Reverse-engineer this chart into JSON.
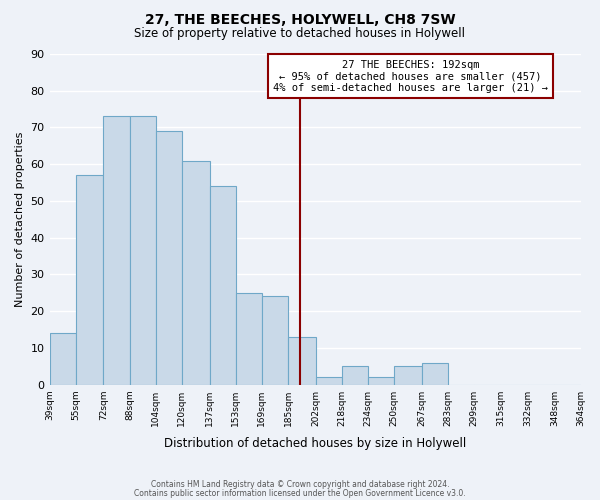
{
  "title": "27, THE BEECHES, HOLYWELL, CH8 7SW",
  "subtitle": "Size of property relative to detached houses in Holywell",
  "xlabel": "Distribution of detached houses by size in Holywell",
  "ylabel": "Number of detached properties",
  "bar_color": "#c9d9e8",
  "bar_edge_color": "#6fa8c8",
  "background_color": "#eef2f8",
  "grid_color": "#ffffff",
  "bin_edges": [
    39,
    55,
    72,
    88,
    104,
    120,
    137,
    153,
    169,
    185,
    202,
    218,
    234,
    250,
    267,
    283,
    299,
    315,
    332,
    348,
    364
  ],
  "bin_labels": [
    "39sqm",
    "55sqm",
    "72sqm",
    "88sqm",
    "104sqm",
    "120sqm",
    "137sqm",
    "153sqm",
    "169sqm",
    "185sqm",
    "202sqm",
    "218sqm",
    "234sqm",
    "250sqm",
    "267sqm",
    "283sqm",
    "299sqm",
    "315sqm",
    "332sqm",
    "348sqm",
    "364sqm"
  ],
  "bar_heights": [
    14,
    57,
    73,
    73,
    69,
    61,
    54,
    25,
    24,
    13,
    2,
    5,
    2,
    5,
    6,
    0,
    0,
    0,
    0,
    0
  ],
  "property_size": 192,
  "vline_color": "#8b0000",
  "annotation_box_edge_color": "#8b0000",
  "annotation_line1": "27 THE BEECHES: 192sqm",
  "annotation_line2": "← 95% of detached houses are smaller (457)",
  "annotation_line3": "4% of semi-detached houses are larger (21) →",
  "ylim": [
    0,
    90
  ],
  "yticks": [
    0,
    10,
    20,
    30,
    40,
    50,
    60,
    70,
    80,
    90
  ],
  "footer_line1": "Contains HM Land Registry data © Crown copyright and database right 2024.",
  "footer_line2": "Contains public sector information licensed under the Open Government Licence v3.0."
}
